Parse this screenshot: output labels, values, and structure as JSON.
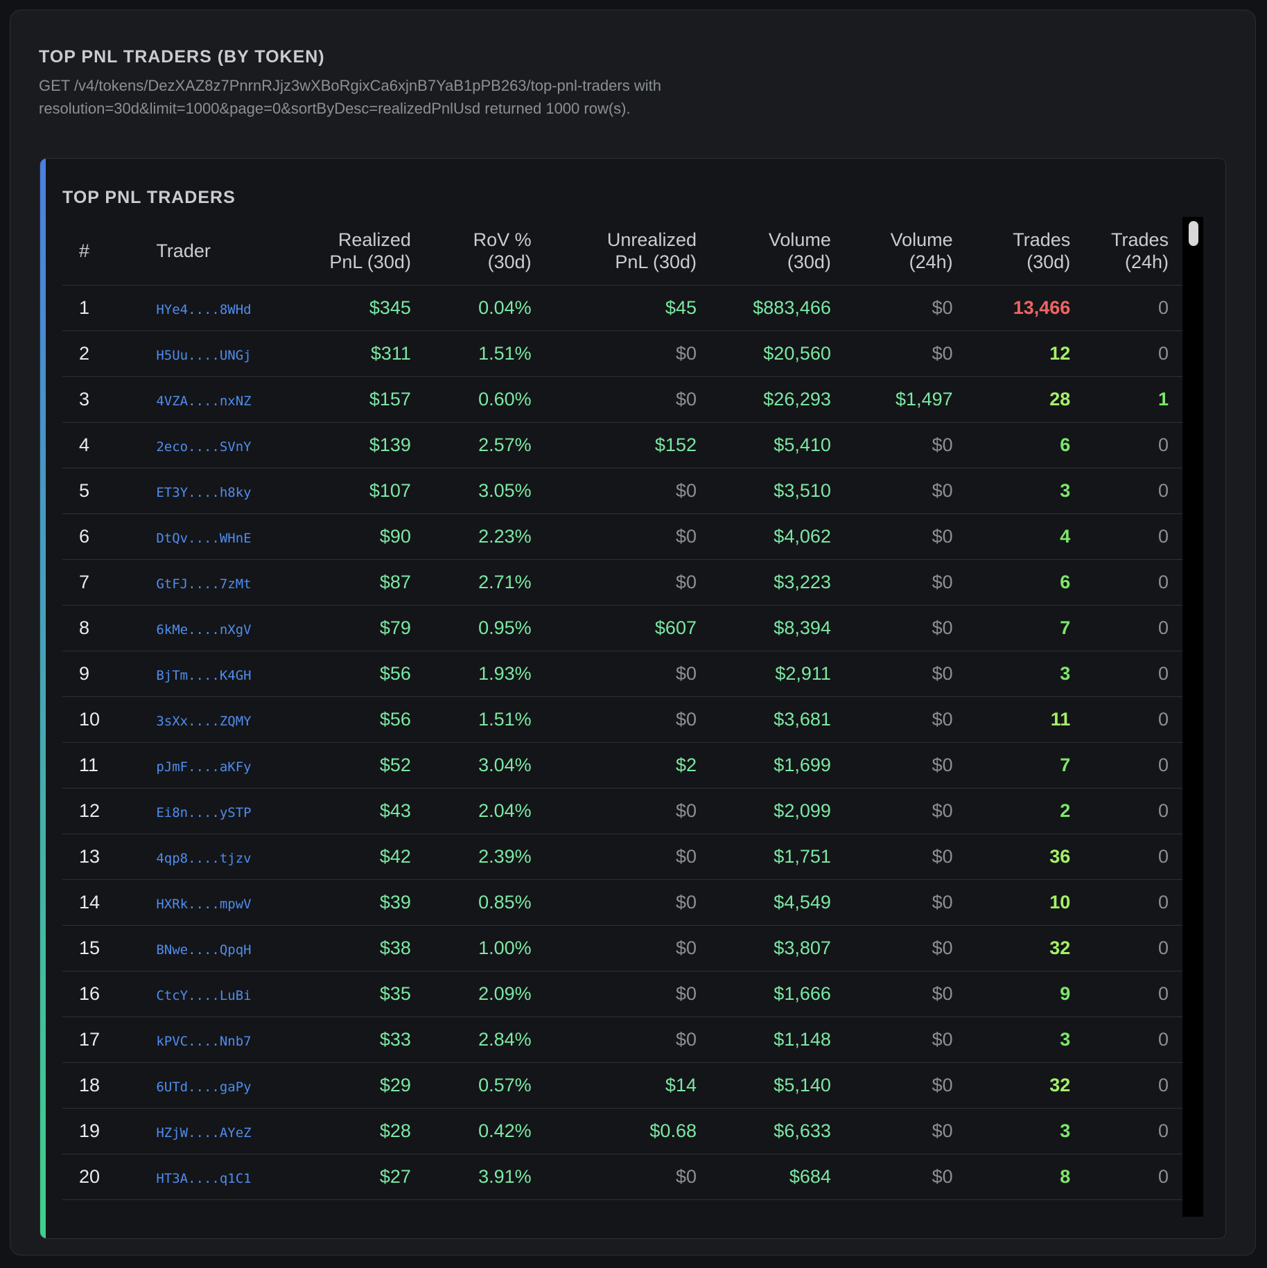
{
  "page": {
    "title": "TOP PNL TRADERS (BY TOKEN)",
    "description": "GET /v4/tokens/DezXAZ8z7PnrnRJjz3wXBoRgixCa6xjnB7YaB1pPB263/top-pnl-traders with resolution=30d&limit=1000&page=0&sortByDesc=realizedPnlUsd returned 1000 row(s)."
  },
  "card": {
    "title": "TOP PNL TRADERS"
  },
  "table": {
    "headers": {
      "rank": "#",
      "trader": "Trader",
      "realized_pnl_l1": "Realized",
      "realized_pnl_l2": "PnL (30d)",
      "rov_l1": "RoV %",
      "rov_l2": "(30d)",
      "unrealized_pnl_l1": "Unrealized",
      "unrealized_pnl_l2": "PnL (30d)",
      "volume_30d_l1": "Volume",
      "volume_30d_l2": "(30d)",
      "volume_24h_l1": "Volume",
      "volume_24h_l2": "(24h)",
      "trades_30d_l1": "Trades",
      "trades_30d_l2": "(30d)",
      "trades_24h_l1": "Trades",
      "trades_24h_l2": "(24h)"
    },
    "rows": [
      {
        "rank": "1",
        "trader": "HYe4....8WHd",
        "realized_pnl": "$345",
        "rov": "0.04%",
        "unrealized_pnl": "$45",
        "volume_30d": "$883,466",
        "volume_24h": "$0",
        "trades_30d": "13,466",
        "trades_24h": "0"
      },
      {
        "rank": "2",
        "trader": "H5Uu....UNGj",
        "realized_pnl": "$311",
        "rov": "1.51%",
        "unrealized_pnl": "$0",
        "volume_30d": "$20,560",
        "volume_24h": "$0",
        "trades_30d": "12",
        "trades_24h": "0"
      },
      {
        "rank": "3",
        "trader": "4VZA....nxNZ",
        "realized_pnl": "$157",
        "rov": "0.60%",
        "unrealized_pnl": "$0",
        "volume_30d": "$26,293",
        "volume_24h": "$1,497",
        "trades_30d": "28",
        "trades_24h": "1"
      },
      {
        "rank": "4",
        "trader": "2eco....SVnY",
        "realized_pnl": "$139",
        "rov": "2.57%",
        "unrealized_pnl": "$152",
        "volume_30d": "$5,410",
        "volume_24h": "$0",
        "trades_30d": "6",
        "trades_24h": "0"
      },
      {
        "rank": "5",
        "trader": "ET3Y....h8ky",
        "realized_pnl": "$107",
        "rov": "3.05%",
        "unrealized_pnl": "$0",
        "volume_30d": "$3,510",
        "volume_24h": "$0",
        "trades_30d": "3",
        "trades_24h": "0"
      },
      {
        "rank": "6",
        "trader": "DtQv....WHnE",
        "realized_pnl": "$90",
        "rov": "2.23%",
        "unrealized_pnl": "$0",
        "volume_30d": "$4,062",
        "volume_24h": "$0",
        "trades_30d": "4",
        "trades_24h": "0"
      },
      {
        "rank": "7",
        "trader": "GtFJ....7zMt",
        "realized_pnl": "$87",
        "rov": "2.71%",
        "unrealized_pnl": "$0",
        "volume_30d": "$3,223",
        "volume_24h": "$0",
        "trades_30d": "6",
        "trades_24h": "0"
      },
      {
        "rank": "8",
        "trader": "6kMe....nXgV",
        "realized_pnl": "$79",
        "rov": "0.95%",
        "unrealized_pnl": "$607",
        "volume_30d": "$8,394",
        "volume_24h": "$0",
        "trades_30d": "7",
        "trades_24h": "0"
      },
      {
        "rank": "9",
        "trader": "BjTm....K4GH",
        "realized_pnl": "$56",
        "rov": "1.93%",
        "unrealized_pnl": "$0",
        "volume_30d": "$2,911",
        "volume_24h": "$0",
        "trades_30d": "3",
        "trades_24h": "0"
      },
      {
        "rank": "10",
        "trader": "3sXx....ZQMY",
        "realized_pnl": "$56",
        "rov": "1.51%",
        "unrealized_pnl": "$0",
        "volume_30d": "$3,681",
        "volume_24h": "$0",
        "trades_30d": "11",
        "trades_24h": "0"
      },
      {
        "rank": "11",
        "trader": "pJmF....aKFy",
        "realized_pnl": "$52",
        "rov": "3.04%",
        "unrealized_pnl": "$2",
        "volume_30d": "$1,699",
        "volume_24h": "$0",
        "trades_30d": "7",
        "trades_24h": "0"
      },
      {
        "rank": "12",
        "trader": "Ei8n....ySTP",
        "realized_pnl": "$43",
        "rov": "2.04%",
        "unrealized_pnl": "$0",
        "volume_30d": "$2,099",
        "volume_24h": "$0",
        "trades_30d": "2",
        "trades_24h": "0"
      },
      {
        "rank": "13",
        "trader": "4qp8....tjzv",
        "realized_pnl": "$42",
        "rov": "2.39%",
        "unrealized_pnl": "$0",
        "volume_30d": "$1,751",
        "volume_24h": "$0",
        "trades_30d": "36",
        "trades_24h": "0"
      },
      {
        "rank": "14",
        "trader": "HXRk....mpwV",
        "realized_pnl": "$39",
        "rov": "0.85%",
        "unrealized_pnl": "$0",
        "volume_30d": "$4,549",
        "volume_24h": "$0",
        "trades_30d": "10",
        "trades_24h": "0"
      },
      {
        "rank": "15",
        "trader": "BNwe....QpqH",
        "realized_pnl": "$38",
        "rov": "1.00%",
        "unrealized_pnl": "$0",
        "volume_30d": "$3,807",
        "volume_24h": "$0",
        "trades_30d": "32",
        "trades_24h": "0"
      },
      {
        "rank": "16",
        "trader": "CtcY....LuBi",
        "realized_pnl": "$35",
        "rov": "2.09%",
        "unrealized_pnl": "$0",
        "volume_30d": "$1,666",
        "volume_24h": "$0",
        "trades_30d": "9",
        "trades_24h": "0"
      },
      {
        "rank": "17",
        "trader": "kPVC....Nnb7",
        "realized_pnl": "$33",
        "rov": "2.84%",
        "unrealized_pnl": "$0",
        "volume_30d": "$1,148",
        "volume_24h": "$0",
        "trades_30d": "3",
        "trades_24h": "0"
      },
      {
        "rank": "18",
        "trader": "6UTd....gaPy",
        "realized_pnl": "$29",
        "rov": "0.57%",
        "unrealized_pnl": "$14",
        "volume_30d": "$5,140",
        "volume_24h": "$0",
        "trades_30d": "32",
        "trades_24h": "0"
      },
      {
        "rank": "19",
        "trader": "HZjW....AYeZ",
        "realized_pnl": "$28",
        "rov": "0.42%",
        "unrealized_pnl": "$0.68",
        "volume_30d": "$6,633",
        "volume_24h": "$0",
        "trades_30d": "3",
        "trades_24h": "0"
      },
      {
        "rank": "20",
        "trader": "HT3A....q1C1",
        "realized_pnl": "$27",
        "rov": "3.91%",
        "unrealized_pnl": "$0",
        "volume_30d": "$684",
        "volume_24h": "$0",
        "trades_30d": "8",
        "trades_24h": "0"
      }
    ]
  },
  "colors": {
    "positive": "#7be8a4",
    "zero": "#8b9096",
    "negative": "#f06464",
    "trades_positive": "#7be86a",
    "trades_bright": "#a4f067",
    "link": "#4f8df0",
    "accent_top": "#4a7fe0",
    "accent_bottom": "#3fd08a"
  }
}
